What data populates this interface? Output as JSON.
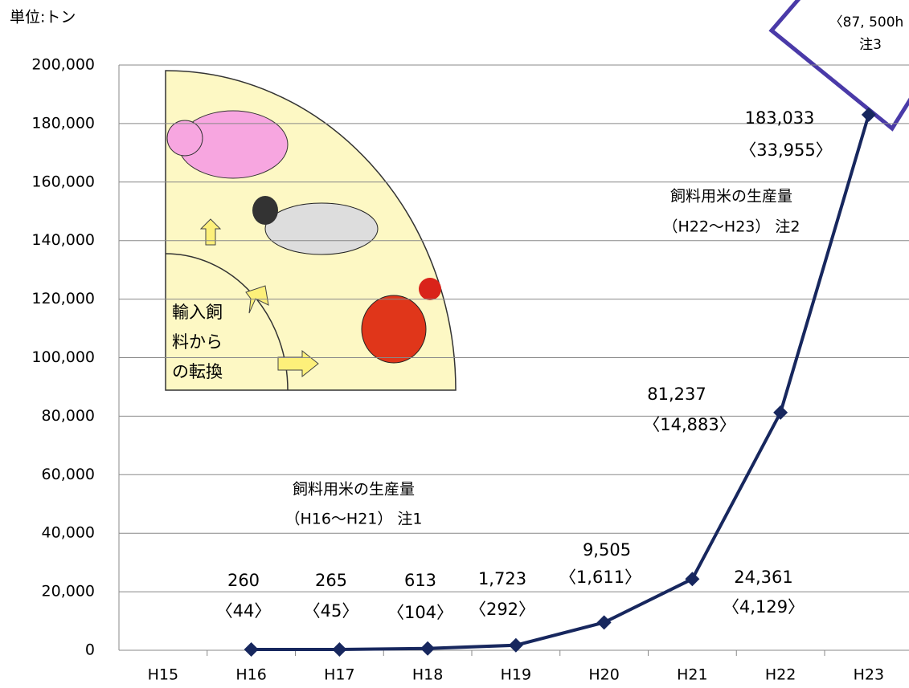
{
  "chart_data": {
    "type": "line",
    "unit_label": "単位:トン",
    "categories": [
      "H15",
      "H16",
      "H17",
      "H18",
      "H19",
      "H20",
      "H21",
      "H22",
      "H23"
    ],
    "values": [
      null,
      260,
      265,
      613,
      1723,
      9505,
      24361,
      81237,
      183033
    ],
    "value_labels": [
      null,
      "260",
      "265",
      "613",
      "1,723",
      "9,505",
      "24,361",
      "81,237",
      "183,033"
    ],
    "area_labels": [
      null,
      "〈44〉",
      "〈45〉",
      "〈104〉",
      "〈292〉",
      "〈1,611〉",
      "〈4,129〉",
      "〈14,883〉",
      "〈33,955〉"
    ],
    "color": "#17275e",
    "ylim": [
      0,
      200000
    ],
    "yticks": [
      0,
      {
        "value": 20000,
        "label": "20,000"
      },
      {
        "value": 40000,
        "label": "40,000"
      },
      {
        "value": 60000,
        "label": "60,000"
      },
      {
        "value": 80000,
        "label": "80,000"
      },
      {
        "value": 100000,
        "label": "100,000"
      },
      {
        "value": 120000,
        "label": "120,000"
      },
      {
        "value": 140000,
        "label": "140,000"
      },
      {
        "value": 160000,
        "label": "160,000"
      },
      {
        "value": 180000,
        "label": "180,000"
      },
      {
        "value": 200000,
        "label": "200,000"
      }
    ],
    "grid": true,
    "annotations": {
      "note1_title": "飼料用米の生産量",
      "note1_range": "（H16〜H21） 注1",
      "note2_title": "飼料用米の生産量",
      "note2_range": "（H22〜H23） 注2",
      "note3_area": "〈87, 500h",
      "note3_ref": "注3",
      "illustration_lines": [
        "輸入飼",
        "料から",
        "の転換"
      ]
    }
  }
}
